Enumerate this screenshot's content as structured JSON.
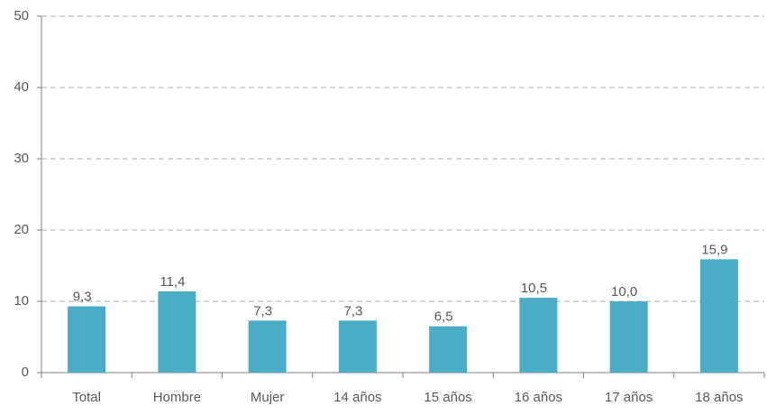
{
  "chart_data": {
    "type": "bar",
    "categories": [
      "Total",
      "Hombre",
      "Mujer",
      "14 años",
      "15 años",
      "16 años",
      "17 años",
      "18 años"
    ],
    "values": [
      9.3,
      11.4,
      7.3,
      7.3,
      6.5,
      10.5,
      10.0,
      15.9
    ],
    "value_labels": [
      "9,3",
      "11,4",
      "7,3",
      "7,3",
      "6,5",
      "10,5",
      "10,0",
      "15,9"
    ],
    "color": "#4bacc6",
    "ylim": [
      0,
      50
    ],
    "yticks": [
      0,
      10,
      20,
      30,
      40,
      50
    ],
    "grid": true
  }
}
